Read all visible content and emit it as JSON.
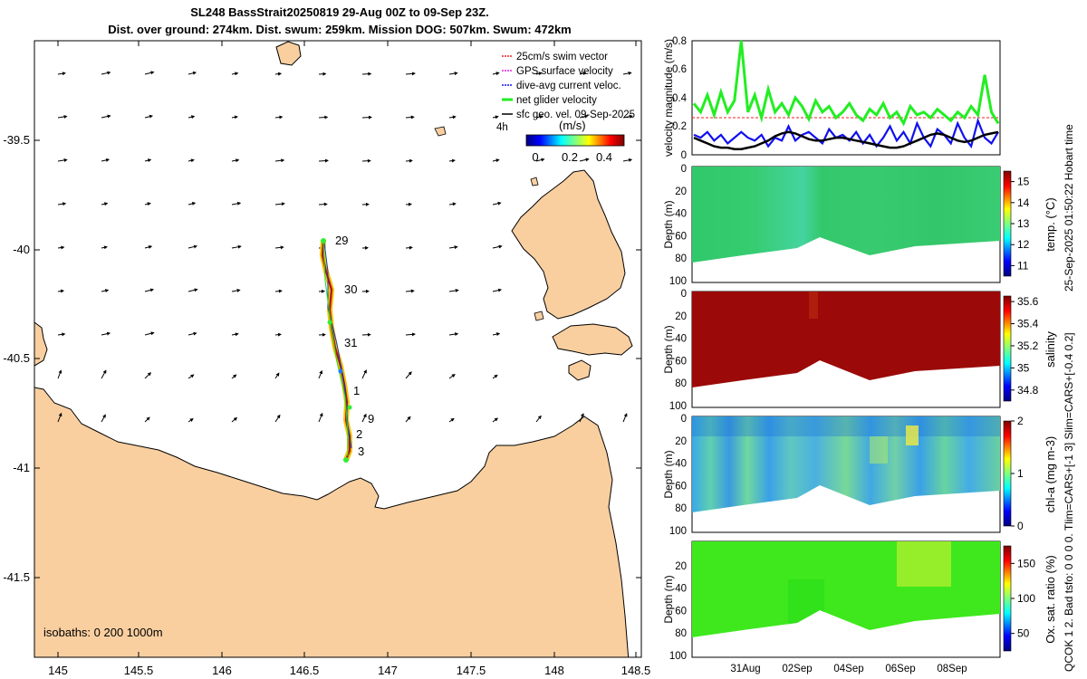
{
  "header": {
    "title_line1": "SL248 BassStrait20250819 29-Aug 00Z to 09-Sep 23Z.",
    "title_line2": "Dist. over ground: 274km. Dist. swum: 259km. Mission DOG: 507km. Swum: 472km"
  },
  "side_note": {
    "time_stamp": "25-Sep-2025 01:50:22 Hobart time",
    "qc_note": "QCOK 1  2. Bad tsfo: 0  0  0  0. Tlim=CARS+[-1 3] Slim=CARS+[-0.4 0.2]"
  },
  "map": {
    "legend": {
      "swim_vector": "25cm/s swim vector",
      "gps_velocity": "GPS surface velocity",
      "dive_avg": "dive-avg current veloc.",
      "net_glider": "net glider velocity",
      "sfc_geo": "sfc geo. vel. 09-Sep-2025",
      "interval": "4h"
    },
    "colorbar_label": "(m/s)",
    "colorbar_ticks": [
      "0",
      "0.2",
      "0.4"
    ],
    "xticks": [
      "145",
      "145.5",
      "146",
      "146.5",
      "147",
      "147.5",
      "148",
      "148.5"
    ],
    "yticks": [
      "-39.5",
      "-40",
      "-40.5",
      "-41",
      "-41.5"
    ],
    "isobaths_label": "isobaths: 0   200  1000m",
    "day_labels": [
      "29",
      "30",
      "31",
      "1",
      "9",
      "2",
      "3"
    ],
    "colors": {
      "land": "#f9cfa0",
      "track_outer": "#f5c400",
      "track_inner": "#b5121b"
    }
  },
  "chart_data": [
    {
      "type": "line",
      "title": "",
      "ylabel": "velocity magnitude (m/s)",
      "ylim": [
        0,
        0.8
      ],
      "yticks": [
        "0",
        "0.2",
        "0.4",
        "0.6",
        "0.8"
      ],
      "xlabel": "",
      "series": [
        {
          "name": "net glider velocity",
          "color": "#22ee22",
          "values": [
            0.36,
            0.3,
            0.42,
            0.28,
            0.44,
            0.3,
            0.38,
            0.8,
            0.3,
            0.42,
            0.26,
            0.46,
            0.3,
            0.36,
            0.28,
            0.4,
            0.34,
            0.25,
            0.38,
            0.3,
            0.34,
            0.26,
            0.3,
            0.36,
            0.28,
            0.24,
            0.32,
            0.28,
            0.36,
            0.26,
            0.3,
            0.22,
            0.34,
            0.28,
            0.3,
            0.26,
            0.32,
            0.28,
            0.24,
            0.3,
            0.26,
            0.34,
            0.28,
            0.56,
            0.3,
            0.22
          ]
        },
        {
          "name": "dive-avg current veloc.",
          "color": "#1010ee",
          "values": [
            0.14,
            0.12,
            0.16,
            0.1,
            0.14,
            0.08,
            0.12,
            0.16,
            0.12,
            0.1,
            0.14,
            0.06,
            0.12,
            0.1,
            0.2,
            0.1,
            0.14,
            0.16,
            0.12,
            0.08,
            0.18,
            0.12,
            0.14,
            0.1,
            0.16,
            0.08,
            0.14,
            0.06,
            0.12,
            0.2,
            0.1,
            0.16,
            0.08,
            0.22,
            0.12,
            0.06,
            0.18,
            0.14,
            0.08,
            0.22,
            0.12,
            0.06,
            0.24,
            0.12,
            0.08,
            0.16
          ]
        },
        {
          "name": "sfc geo. vel.",
          "color": "#000000",
          "values": [
            0.12,
            0.1,
            0.08,
            0.06,
            0.05,
            0.05,
            0.04,
            0.04,
            0.05,
            0.06,
            0.08,
            0.1,
            0.13,
            0.15,
            0.16,
            0.15,
            0.13,
            0.11,
            0.1,
            0.1,
            0.11,
            0.12,
            0.12,
            0.11,
            0.1,
            0.09,
            0.08,
            0.07,
            0.06,
            0.05,
            0.05,
            0.06,
            0.08,
            0.1,
            0.12,
            0.14,
            0.15,
            0.14,
            0.12,
            0.1,
            0.09,
            0.1,
            0.12,
            0.14,
            0.15,
            0.16
          ]
        },
        {
          "name": "25cm/s swim vector",
          "color": "#ee2222",
          "values": [
            0.25
          ]
        }
      ]
    },
    {
      "type": "heatmap",
      "variable": "temperature",
      "ylabel": "Depth (m)",
      "colorbar_label": "temp. (°C)",
      "clim": [
        10.5,
        15.5
      ],
      "colorbar_ticks": [
        "11",
        "12",
        "13",
        "14",
        "15"
      ],
      "depth_ticks": [
        "20",
        "40",
        "60",
        "80",
        "100"
      ],
      "depth_top": [
        "0"
      ],
      "dominant_value": 13.2
    },
    {
      "type": "heatmap",
      "variable": "salinity",
      "ylabel": "Depth (m)",
      "colorbar_label": "salinity",
      "clim": [
        34.7,
        35.65
      ],
      "colorbar_ticks": [
        "34.8",
        "35",
        "35.2",
        "35.4",
        "35.6"
      ],
      "depth_ticks": [
        "20",
        "40",
        "60",
        "80",
        "100"
      ],
      "depth_top": [
        "0"
      ],
      "dominant_value": 35.6
    },
    {
      "type": "heatmap",
      "variable": "chlorophyll-a",
      "ylabel": "Depth (m)",
      "colorbar_label": "chl-a (mg m-3)",
      "clim": [
        0,
        2
      ],
      "colorbar_ticks": [
        "0",
        "1",
        "2"
      ],
      "depth_ticks": [
        "20",
        "40",
        "60",
        "80",
        "100"
      ],
      "depth_top": [
        "0"
      ],
      "dominant_value": 0.5
    },
    {
      "type": "heatmap",
      "variable": "oxygen saturation",
      "ylabel": "Depth (m)",
      "colorbar_label": "Ox. sat. ratio (%)",
      "clim": [
        25,
        175
      ],
      "colorbar_ticks": [
        "50",
        "100",
        "150"
      ],
      "depth_ticks": [
        "20",
        "40",
        "60",
        "80",
        "100"
      ],
      "depth_top": [],
      "dominant_value": 105,
      "xticks": [
        "31Aug",
        "02Sep",
        "04Sep",
        "06Sep",
        "08Sep"
      ]
    }
  ]
}
